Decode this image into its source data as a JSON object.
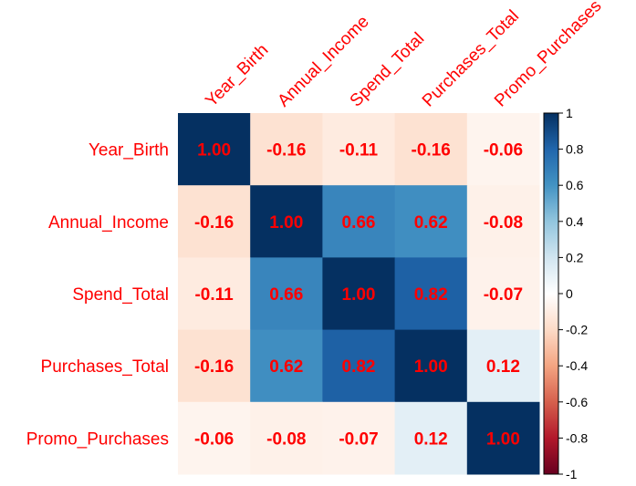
{
  "chart_data": {
    "type": "heatmap",
    "variables": [
      "Year_Birth",
      "Annual_Income",
      "Spend_Total",
      "Purchases_Total",
      "Promo_Purchases"
    ],
    "matrix": [
      [
        1.0,
        -0.16,
        -0.11,
        -0.16,
        -0.06
      ],
      [
        -0.16,
        1.0,
        0.66,
        0.62,
        -0.08
      ],
      [
        -0.11,
        0.66,
        1.0,
        0.82,
        -0.07
      ],
      [
        -0.16,
        0.62,
        0.82,
        1.0,
        0.12
      ],
      [
        -0.06,
        -0.08,
        -0.07,
        0.12,
        1.0
      ]
    ],
    "value_labels": [
      [
        "1.00",
        "-0.16",
        "-0.11",
        "-0.16",
        "-0.06"
      ],
      [
        "-0.16",
        "1.00",
        "0.66",
        "0.62",
        "-0.08"
      ],
      [
        "-0.11",
        "0.66",
        "1.00",
        "0.82",
        "-0.07"
      ],
      [
        "-0.16",
        "0.62",
        "0.82",
        "1.00",
        "0.12"
      ],
      [
        "-0.06",
        "-0.08",
        "-0.07",
        "0.12",
        "1.00"
      ]
    ],
    "color_scale": {
      "range": [
        -1,
        1
      ],
      "ticks": [
        "1",
        "0.8",
        "0.6",
        "0.4",
        "0.2",
        "0",
        "-0.2",
        "-0.4",
        "-0.6",
        "-0.8",
        "-1"
      ],
      "stops": [
        "#67001F",
        "#B2182B",
        "#D6604D",
        "#F4A582",
        "#FDDBC7",
        "#FFFFFF",
        "#D1E5F0",
        "#92C5DE",
        "#4393C3",
        "#2166AC",
        "#053061"
      ]
    },
    "label_color": "#FF0000",
    "value_text_color": "#FF0000"
  }
}
